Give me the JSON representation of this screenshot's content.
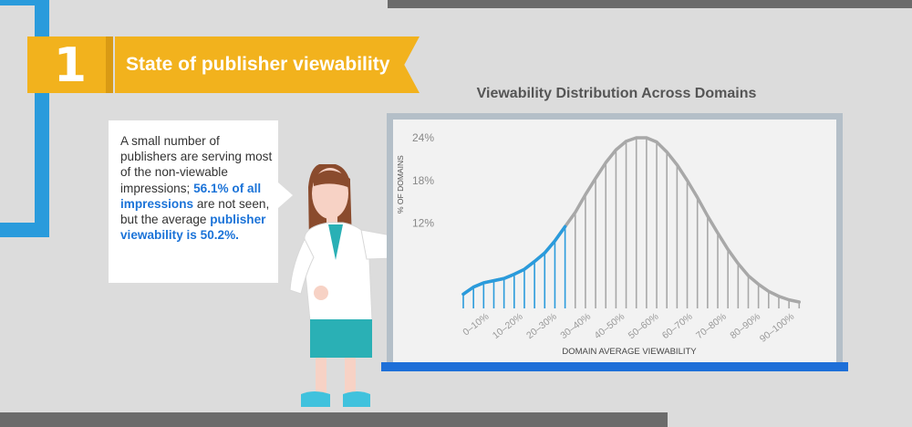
{
  "section": {
    "number": "1",
    "title": "State of publisher viewability"
  },
  "bubble": {
    "text1": "A small number of publishers are serving most of the non-viewable impressions; ",
    "hl1": "56.1% of all impressions",
    "text2": " are not seen, but the average ",
    "hl2": "publisher viewability is 50.2%."
  },
  "colors": {
    "accent_yellow": "#f2b21d",
    "accent_blue": "#2a9bdc",
    "highlight_blue": "#1b73d8",
    "curve_gray": "#a8a8a8"
  },
  "chart_data": {
    "type": "area",
    "title": "Viewability Distribution Across Domains",
    "xlabel": "DOMAIN AVERAGE VIEWABILITY",
    "ylabel": "% OF DOMAINS",
    "y_ticks": [
      "24%",
      "18%",
      "12%"
    ],
    "y_tick_values": [
      24,
      18,
      12
    ],
    "ylim": [
      0,
      27
    ],
    "x_tick_labels": [
      "0–10%",
      "10–20%",
      "20–30%",
      "30–40%",
      "40–50%",
      "50–60%",
      "60–70%",
      "70–80%",
      "80–90%",
      "90–100%"
    ],
    "xlim": [
      0,
      100
    ],
    "highlight_range": [
      0,
      30
    ],
    "x": [
      0,
      3,
      6,
      9,
      12,
      15,
      18,
      21,
      24,
      27,
      30,
      33,
      36,
      39,
      42,
      45,
      48,
      51,
      54,
      57,
      60,
      63,
      66,
      69,
      72,
      75,
      78,
      81,
      84,
      87,
      90,
      93,
      96,
      99
    ],
    "y": [
      2.0,
      3.0,
      3.6,
      3.9,
      4.2,
      4.8,
      5.5,
      6.6,
      7.8,
      9.5,
      11.5,
      13.5,
      16.0,
      18.3,
      20.5,
      22.3,
      23.5,
      24.0,
      24.0,
      23.4,
      22.0,
      20.2,
      18.0,
      15.6,
      13.0,
      10.6,
      8.3,
      6.3,
      4.6,
      3.4,
      2.4,
      1.7,
      1.2,
      0.9
    ]
  }
}
